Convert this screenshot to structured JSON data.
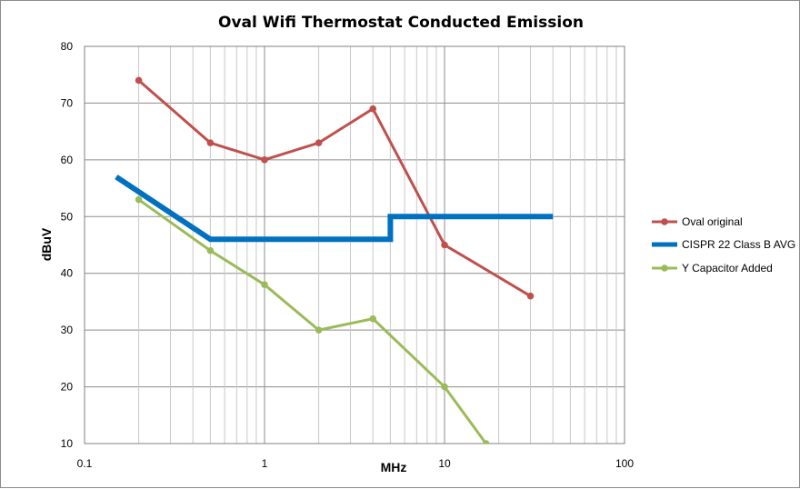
{
  "chart_data": {
    "type": "line",
    "title": "Oval Wifi Thermostat Conducted Emission",
    "xlabel": "MHz",
    "ylabel": "dBuV",
    "xscale": "log",
    "xlim": [
      0.1,
      100
    ],
    "ylim": [
      10,
      80
    ],
    "x_ticks": [
      0.1,
      1,
      10,
      100
    ],
    "x_tick_labels": [
      "0.1",
      "1",
      "10",
      "100"
    ],
    "y_ticks": [
      10,
      20,
      30,
      40,
      50,
      60,
      70,
      80
    ],
    "y_tick_labels": [
      "10",
      "20",
      "30",
      "40",
      "50",
      "60",
      "70",
      "80"
    ],
    "grid": true,
    "legend_position": "right",
    "series": [
      {
        "name": "Oval original",
        "color": "#c0504d",
        "markers": true,
        "x": [
          0.2,
          0.5,
          1,
          2,
          4,
          10,
          30
        ],
        "y": [
          74,
          63,
          60,
          63,
          69,
          45,
          36
        ]
      },
      {
        "name": "CISPR 22 Class B AVG",
        "color": "#0070c0",
        "markers": false,
        "x": [
          0.15,
          0.5,
          5,
          5,
          40
        ],
        "y": [
          57,
          46,
          46,
          50,
          50
        ]
      },
      {
        "name": "Y Capacitor Added",
        "color": "#9bbb59",
        "markers": true,
        "x": [
          0.2,
          0.5,
          1,
          2,
          4,
          10,
          17
        ],
        "y": [
          53,
          44,
          38,
          30,
          32,
          20,
          10
        ]
      }
    ]
  }
}
